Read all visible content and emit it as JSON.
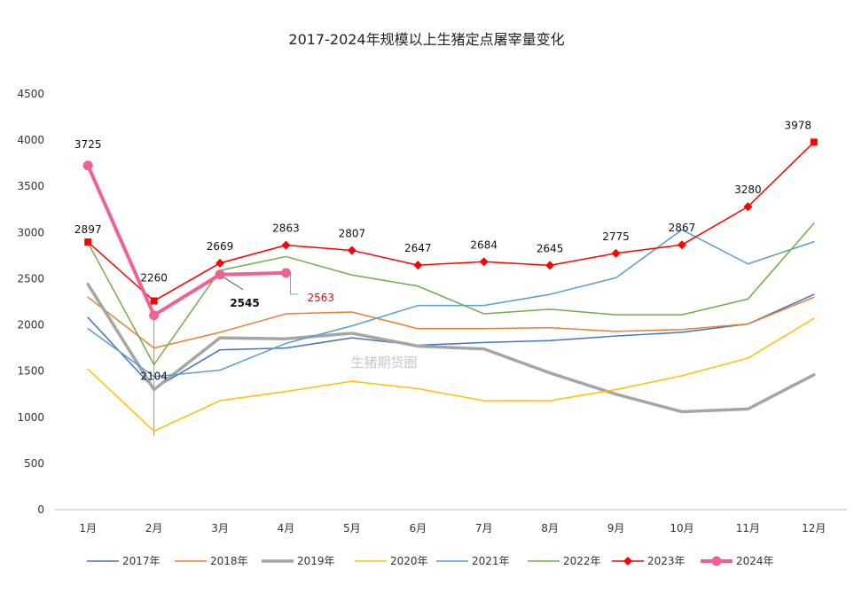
{
  "chart_data": {
    "type": "line",
    "title": "2017-2024年规模以上生猪定点屠宰量变化",
    "categories": [
      "1月",
      "2月",
      "3月",
      "4月",
      "5月",
      "6月",
      "7月",
      "8月",
      "9月",
      "10月",
      "11月",
      "12月"
    ],
    "ylim": [
      0,
      4500
    ],
    "yticks": [
      0,
      500,
      1000,
      1500,
      2000,
      2500,
      3000,
      3500,
      4000,
      4500
    ],
    "grid": false,
    "legend_position": "bottom",
    "watermark": "生猪期货圈",
    "series": [
      {
        "name": "2017年",
        "color": "#4472C4",
        "values": [
          2080,
          1310,
          1730,
          1750,
          1860,
          1780,
          1810,
          1830,
          1880,
          1920,
          2010,
          2330
        ]
      },
      {
        "name": "2018年",
        "color": "#ED7D31",
        "values": [
          2300,
          1750,
          1920,
          2120,
          2140,
          1960,
          1960,
          1970,
          1930,
          1950,
          2010,
          2300
        ]
      },
      {
        "name": "2019年",
        "color": "#A5A5A5",
        "values": [
          2440,
          1300,
          1860,
          1850,
          1910,
          1770,
          1740,
          1480,
          1250,
          1060,
          1090,
          1460
        ]
      },
      {
        "name": "2020年",
        "color": "#FFC000",
        "values": [
          1520,
          850,
          1180,
          1280,
          1390,
          1310,
          1180,
          1180,
          1300,
          1450,
          1640,
          2070
        ]
      },
      {
        "name": "2021年",
        "color": "#5B9BD5",
        "values": [
          1960,
          1440,
          1510,
          1800,
          1990,
          2210,
          2210,
          2330,
          2510,
          3030,
          2660,
          2900
        ]
      },
      {
        "name": "2022年",
        "color": "#70AD47",
        "values": [
          2890,
          1570,
          2590,
          2740,
          2540,
          2420,
          2120,
          2170,
          2110,
          2110,
          2280,
          3100
        ]
      },
      {
        "name": "2023年",
        "color": "#FF0000",
        "values": [
          2897,
          2260,
          2669,
          2863,
          2807,
          2647,
          2684,
          2645,
          2775,
          2867,
          3280,
          3978
        ]
      },
      {
        "name": "2024年",
        "color": "#F06292",
        "values": [
          3725,
          2104,
          2545,
          2563,
          null,
          null,
          null,
          null,
          null,
          null,
          null,
          null
        ]
      }
    ],
    "annotations": [
      {
        "series": "2023年",
        "label": "2897",
        "index": 0
      },
      {
        "series": "2023年",
        "label": "2260",
        "index": 1
      },
      {
        "series": "2023年",
        "label": "2669",
        "index": 2
      },
      {
        "series": "2023年",
        "label": "2863",
        "index": 3
      },
      {
        "series": "2023年",
        "label": "2807",
        "index": 4
      },
      {
        "series": "2023年",
        "label": "2647",
        "index": 5
      },
      {
        "series": "2023年",
        "label": "2684",
        "index": 6
      },
      {
        "series": "2023年",
        "label": "2645",
        "index": 7
      },
      {
        "series": "2023年",
        "label": "2775",
        "index": 8
      },
      {
        "series": "2023年",
        "label": "2867",
        "index": 9
      },
      {
        "series": "2023年",
        "label": "3280",
        "index": 10
      },
      {
        "series": "2023年",
        "label": "3978",
        "index": 11
      },
      {
        "series": "2024年",
        "label": "3725",
        "index": 0
      },
      {
        "series": "2024年",
        "label": "2104",
        "index": 1
      },
      {
        "series": "2024年",
        "label": "2545",
        "index": 2
      },
      {
        "series": "2024年",
        "label": "2563",
        "index": 3
      }
    ]
  }
}
